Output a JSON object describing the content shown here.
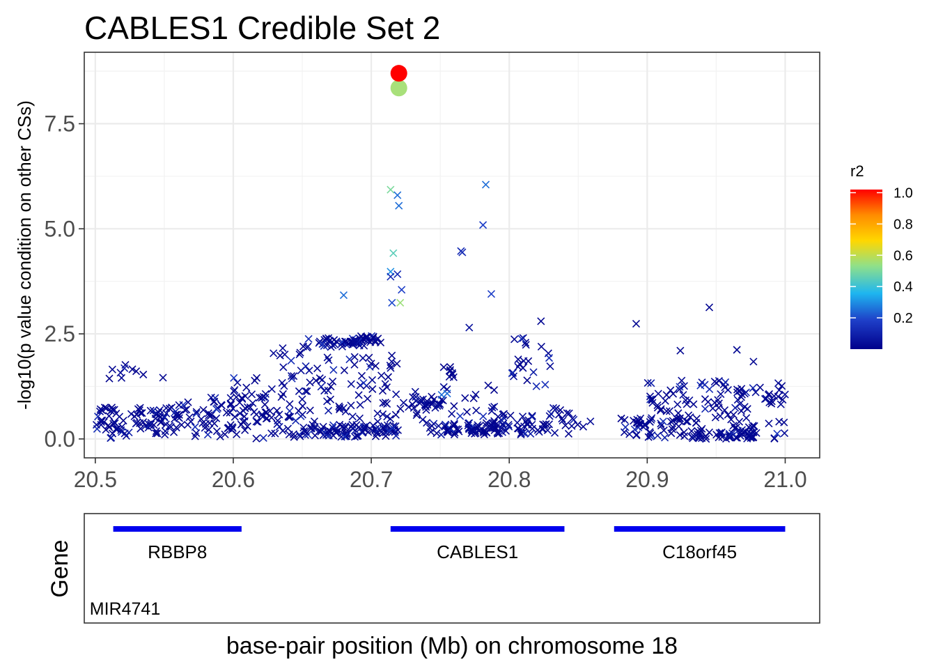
{
  "chart_data": {
    "type": "scatter",
    "title": "CABLES1 Credible Set 2",
    "ylabel": "-log10(p value condition on other CSs)",
    "xlabel": "base-pair position (Mb) on chromosome 18",
    "xlim": [
      20.492,
      21.025
    ],
    "ylim": [
      -0.45,
      9.2
    ],
    "x_ticks": [
      20.5,
      20.6,
      20.7,
      20.8,
      20.9,
      21.0
    ],
    "x_tick_labels": [
      "20.5",
      "20.6",
      "20.7",
      "20.8",
      "20.9",
      "21.0"
    ],
    "y_ticks": [
      0.0,
      2.5,
      5.0,
      7.5
    ],
    "y_tick_labels": [
      "0.0",
      "2.5",
      "5.0",
      "7.5"
    ],
    "grid": true,
    "legend": {
      "title": "r2",
      "placement": "right",
      "ticks": [
        1.0,
        0.8,
        0.6,
        0.4,
        0.2
      ],
      "tick_labels": [
        "1.0",
        "0.8",
        "0.6",
        "0.4",
        "0.2"
      ],
      "range": [
        0.0,
        1.02
      ],
      "colors": [
        "#00008B",
        "#1E3FC8",
        "#1EB6F0",
        "#8FE08A",
        "#FFD700",
        "#FF8C00",
        "#FF0000"
      ]
    },
    "highlighted_points": [
      {
        "x": 20.72,
        "y": 8.7,
        "r2": 1.0
      },
      {
        "x": 20.72,
        "y": 8.35,
        "r2": 0.55
      }
    ],
    "notable_points": [
      {
        "x": 20.714,
        "y": 5.93,
        "r2": 0.5
      },
      {
        "x": 20.719,
        "y": 5.8,
        "r2": 0.25
      },
      {
        "x": 20.72,
        "y": 5.55,
        "r2": 0.25
      },
      {
        "x": 20.716,
        "y": 4.42,
        "r2": 0.45
      },
      {
        "x": 20.714,
        "y": 3.98,
        "r2": 0.3
      },
      {
        "x": 20.719,
        "y": 3.92,
        "r2": 0.12
      },
      {
        "x": 20.714,
        "y": 3.86,
        "r2": 0.12
      },
      {
        "x": 20.722,
        "y": 3.55,
        "r2": 0.18
      },
      {
        "x": 20.68,
        "y": 3.42,
        "r2": 0.25
      },
      {
        "x": 20.715,
        "y": 3.24,
        "r2": 0.2
      },
      {
        "x": 20.721,
        "y": 3.24,
        "r2": 0.55
      },
      {
        "x": 20.783,
        "y": 6.05,
        "r2": 0.25
      },
      {
        "x": 20.781,
        "y": 5.09,
        "r2": 0.18
      },
      {
        "x": 20.765,
        "y": 4.47,
        "r2": 0.12
      },
      {
        "x": 20.766,
        "y": 4.44,
        "r2": 0.12
      },
      {
        "x": 20.787,
        "y": 3.45,
        "r2": 0.18
      },
      {
        "x": 20.771,
        "y": 2.65,
        "r2": 0.05
      },
      {
        "x": 20.755,
        "y": 1.08,
        "r2": 0.25
      },
      {
        "x": 20.751,
        "y": 1.05,
        "r2": 0.25
      },
      {
        "x": 20.892,
        "y": 2.74,
        "r2": 0.02
      },
      {
        "x": 20.945,
        "y": 3.13,
        "r2": 0.02
      },
      {
        "x": 20.823,
        "y": 2.8,
        "r2": 0.02
      },
      {
        "x": 20.965,
        "y": 2.12,
        "r2": 0.02
      },
      {
        "x": 20.924,
        "y": 2.1,
        "r2": 0.02
      },
      {
        "x": 20.977,
        "y": 1.84,
        "r2": 0.02
      }
    ],
    "background_points": {
      "description": "about 900 low-LD variants (r2 near 0) scattered 20.50-21.00 Mb with -log10(p) roughly 0-2.4",
      "x_range": [
        20.5,
        21.0
      ],
      "y_range": [
        0.0,
        2.45
      ]
    }
  },
  "gene_track": {
    "ylabel": "Gene",
    "genes": [
      {
        "name": "RBBP8",
        "start": 20.513,
        "end": 20.606
      },
      {
        "name": "CABLES1",
        "start": 20.714,
        "end": 20.84
      },
      {
        "name": "C18orf45",
        "start": 20.876,
        "end": 21.0
      },
      {
        "name": "MIR4741",
        "start": 20.502,
        "end": 20.502
      }
    ]
  }
}
